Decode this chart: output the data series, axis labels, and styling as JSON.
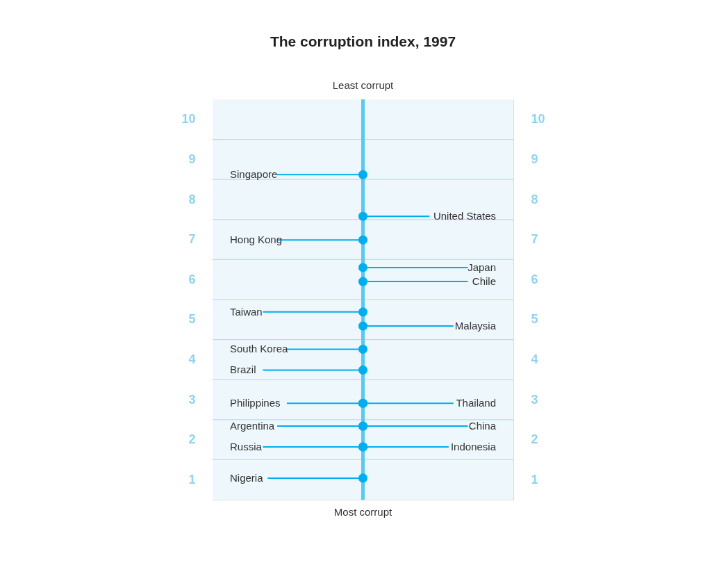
{
  "chart_data": {
    "type": "scatter",
    "title": "The corruption index, 1997",
    "annotations": [
      "Least corrupt",
      "Most corrupt"
    ],
    "categories": [
      null
    ],
    "ylim": [
      0.5,
      10.5
    ],
    "yticks": [
      1,
      2,
      3,
      4,
      5,
      6,
      7,
      8,
      9,
      10,
      {
        "value": 1.5,
        "label": null
      },
      {
        "value": 2.5,
        "label": null
      },
      {
        "value": 3.5,
        "label": null
      },
      {
        "value": 4.5,
        "label": null
      },
      {
        "value": 5.5,
        "label": null
      },
      {
        "value": 6.5,
        "label": null
      },
      {
        "value": 7.5,
        "label": null
      },
      {
        "value": 8.5,
        "label": null
      },
      {
        "value": 9.5,
        "label": null
      }
    ],
    "y2lim": [
      0.5,
      10.5
    ],
    "y2ticks": [
      1,
      2,
      3,
      4,
      5,
      6,
      7,
      8,
      9,
      10
    ],
    "tick_labels": "y",
    "grid": "y",
    "marker": "circle",
    "series": [
      {
        "color": "#00aeef",
        "x": [
          null,
          null,
          null,
          null,
          null,
          null,
          null,
          null,
          null
        ],
        "values": [
          8.62,
          6.99,
          5.19,
          4.26,
          3.74,
          2.91,
          2.34,
          1.82,
          1.04
        ],
        "value_labels": [
          "Singapore",
          "Hong Kong",
          "Taiwan",
          "South Korea",
          "Brazil",
          "Philippines",
          "Argentina",
          "Russia",
          "Nigeria"
        ]
      },
      {
        "color": "#00aeef",
        "x": [
          null,
          null,
          null,
          null,
          null,
          null,
          null
        ],
        "values": [
          7.58,
          6.3,
          5.95,
          4.84,
          2.91,
          2.34,
          1.82
        ],
        "value_labels": [
          "United States",
          "Japan",
          "Chile",
          "Malaysia",
          "Thailand",
          "China",
          "Indonesia"
        ]
      }
    ]
  }
}
